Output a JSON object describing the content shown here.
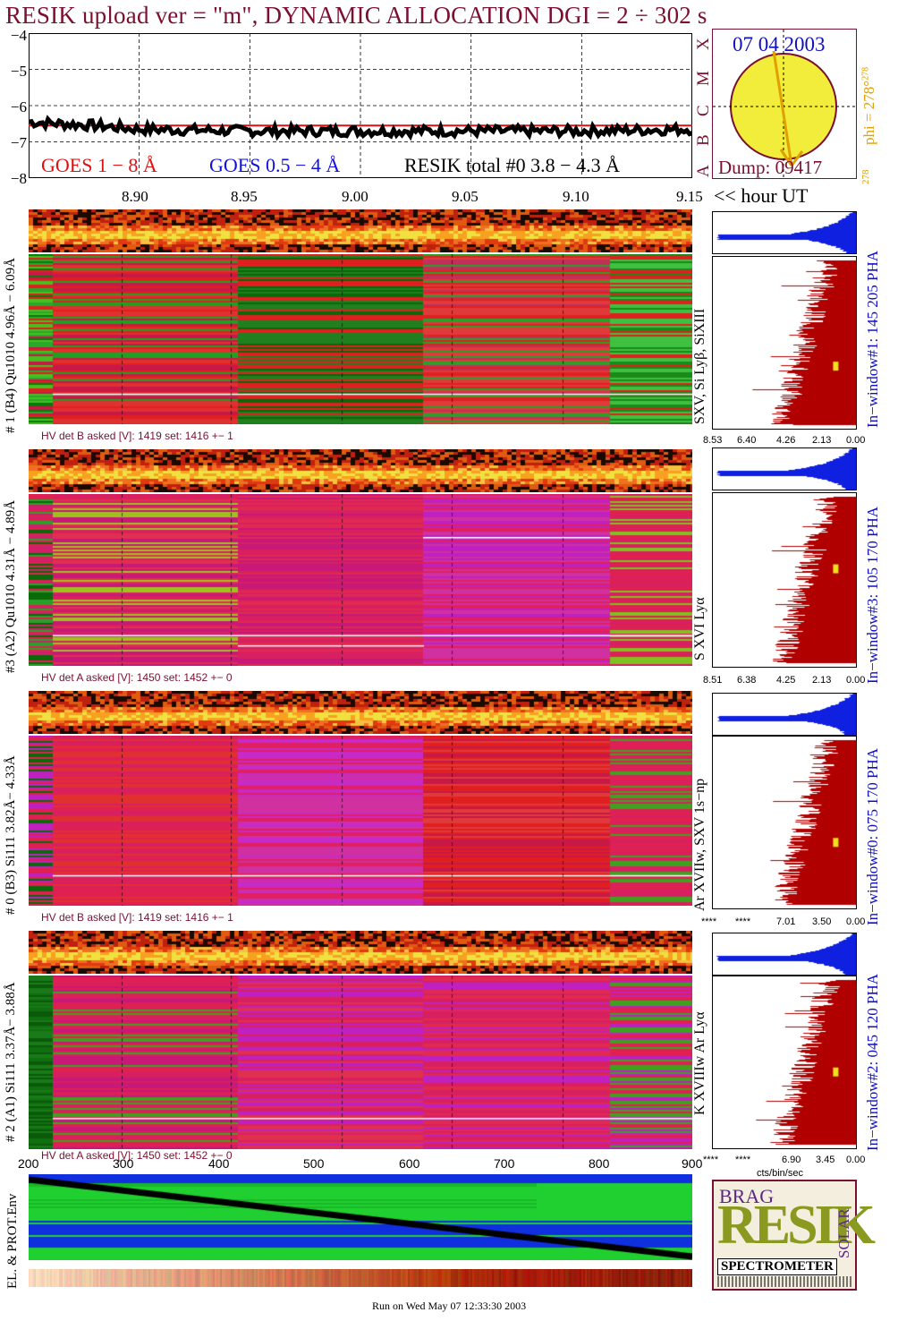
{
  "header": {
    "title": "RESIK upload ver = \"m\", DYNAMIC ALLOCATION  DGI =   2 ÷ 302 s"
  },
  "goes_panel": {
    "y_ticks": [
      "−4",
      "−5",
      "−6",
      "−7",
      "−8"
    ],
    "legend": {
      "goes_long": "GOES 1 − 8 Å",
      "goes_short": "GOES 0.5 − 4 Å",
      "resik_total": "RESIK total #0  3.8 − 4.3 Å"
    },
    "flare_classes": [
      "A",
      "B",
      "C",
      "M",
      "X"
    ],
    "colors": {
      "goes_long": "#e01010",
      "goes_short": "#1010e0",
      "resik": "#000000"
    }
  },
  "time_axis": {
    "ticks": [
      "8.90",
      "8.95",
      "9.00",
      "9.05",
      "9.10",
      "9.15"
    ],
    "unit_label": "<< hour UT"
  },
  "sun": {
    "date": "07 04 2003",
    "dump": "Dump: 09417",
    "phi_label": "phi = 278°",
    "phi_super": "278",
    "phi_bottom": "278"
  },
  "channels": [
    {
      "left_label": "# 1 (B4) Qu1010 4.96Å − 6.09Å",
      "lines_label": "SXV, Si Lyβ, SiXIII",
      "window_label": "In−window#1:  145 205 PHA",
      "hv_text": "HV det B asked [V]:  1419 set:  1416 +−    1",
      "hist_ticks": [
        "8.53",
        "6.40",
        "4.26",
        "2.13",
        "0.00"
      ]
    },
    {
      "left_label": "#3 (A2) Qu1010  4.31Å − 4.89Å",
      "lines_label": "S XVI Lyα",
      "window_label": "In−window#3:  105 170 PHA",
      "hv_text": "HV det A asked [V]:  1450 set:  1452 +−    0",
      "hist_ticks": [
        "8.51",
        "6.38",
        "4.25",
        "2.13",
        "0.00"
      ]
    },
    {
      "left_label": "# 0 (B3) Si111  3.82Å− 4.33Å",
      "lines_label": "Ar XVIIw,  SXV 1s−np",
      "window_label": "In−window#0:  075 170 PHA",
      "hv_text": "HV det B asked [V]:  1419 set:  1416 +−    1",
      "hist_ticks": [
        "****",
        "****",
        "7.01",
        "3.50",
        "0.00"
      ]
    },
    {
      "left_label": "# 2 (A1) Si111  3.37Å− 3.88Å",
      "lines_label": "K XVIIIw  Ar Lyα",
      "window_label": "In−window#2:  045 120 PHA",
      "hv_text": "HV det A asked [V]:  1450 set:  1452 +−    0",
      "hist_ticks": [
        "****",
        "****",
        "6.90",
        "3.45",
        "0.00"
      ]
    }
  ],
  "hist_unit": "cts/bin/sec",
  "env_panel": {
    "label": "EL. & PROT.Env",
    "x_ticks": [
      "200",
      "300",
      "400",
      "500",
      "600",
      "700",
      "800",
      "900"
    ]
  },
  "logo": {
    "letters": "RESIK",
    "small_top": "BRAG",
    "side_text": "SOLAR",
    "caption": "SPECTROMETER",
    "colors": {
      "frame": "#7a1030",
      "bg": "#f4eede"
    }
  },
  "footer": {
    "run_text": "Run on Wed May 07 12:33:30 2003"
  },
  "chart_data": {
    "type": "line",
    "title": "RESIK upload ver = \"m\", DYNAMIC ALLOCATION  DGI =   2 ÷ 302 s",
    "xlabel": "<< hour UT",
    "ylabel": "",
    "xlim": [
      8.85,
      9.15
    ],
    "ylim": [
      -8,
      -4
    ],
    "x_ticks": [
      8.9,
      8.95,
      9.0,
      9.05,
      9.1,
      9.15
    ],
    "y_ticks": [
      -4,
      -5,
      -6,
      -7,
      -8
    ],
    "series": [
      {
        "name": "GOES 1 − 8 Å",
        "color": "#e01010",
        "x": [
          8.85,
          8.9,
          8.95,
          9.0,
          9.05,
          9.1,
          9.15
        ],
        "y": [
          -6.55,
          -6.55,
          -6.55,
          -6.55,
          -6.55,
          -6.55,
          -6.55
        ]
      },
      {
        "name": "RESIK total #0  3.8 − 4.3 Å",
        "color": "#000000",
        "x": [
          8.85,
          8.88,
          8.9,
          8.95,
          9.0,
          9.05,
          9.1,
          9.15
        ],
        "y": [
          -6.45,
          -6.55,
          -6.65,
          -6.7,
          -6.7,
          -6.7,
          -6.7,
          -6.65
        ]
      }
    ]
  }
}
